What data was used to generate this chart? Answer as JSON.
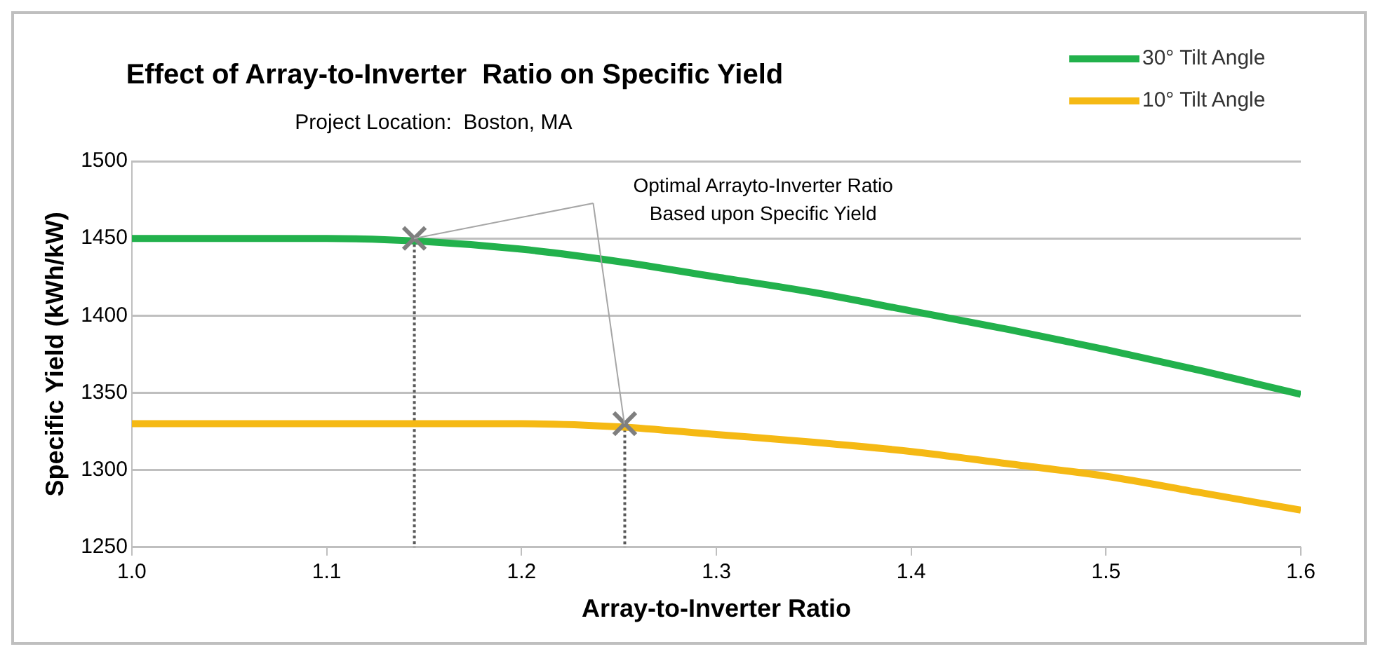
{
  "chart_data": {
    "type": "line",
    "title": "Effect of Array-to-Inverter  Ratio on Specific Yield",
    "subtitle": "Project Location:  Boston, MA",
    "xlabel": "Array-to-Inverter Ratio",
    "ylabel": "Specific Yield (kWh/kW)",
    "x": [
      1.0,
      1.05,
      1.1,
      1.15,
      1.2,
      1.25,
      1.3,
      1.35,
      1.4,
      1.45,
      1.5,
      1.55,
      1.6
    ],
    "series": [
      {
        "name": "30° Tilt Angle",
        "color": "#22b14c",
        "values": [
          1450,
          1450,
          1450,
          1448,
          1443,
          1435,
          1425,
          1415,
          1403,
          1391,
          1378,
          1364,
          1349
        ]
      },
      {
        "name": "10° Tilt Angle",
        "color": "#f5b914",
        "values": [
          1330,
          1330,
          1330,
          1330,
          1330,
          1328,
          1323,
          1318,
          1312,
          1304,
          1296,
          1285,
          1274
        ]
      },
      {
        "type": "scatter",
        "marker": "cross",
        "color": "#7f7f7f",
        "x": [
          1.145,
          1.253
        ],
        "values": [
          1450,
          1330
        ]
      }
    ],
    "ref_lines": [
      {
        "axis": "x",
        "value": 1.145,
        "color": "#595959",
        "line_style": "dotted"
      },
      {
        "axis": "x",
        "value": 1.253,
        "color": "#595959",
        "line_style": "dotted"
      }
    ],
    "annotations": [
      "Optimal Arrayto-Inverter Ratio\nBased upon Specific Yield"
    ],
    "xlim": [
      1.0,
      1.6
    ],
    "xticks": [
      {
        "value": 1.0,
        "label": "1.0"
      },
      1.1,
      1.2,
      1.3,
      1.4,
      1.5,
      1.6
    ],
    "ylim": [
      1250,
      1500
    ],
    "yticks": [
      1250,
      1300,
      1350,
      1400,
      1450,
      1500
    ],
    "grid": "y",
    "legend": "top right",
    "marker": "none",
    "line_style": "solid"
  }
}
